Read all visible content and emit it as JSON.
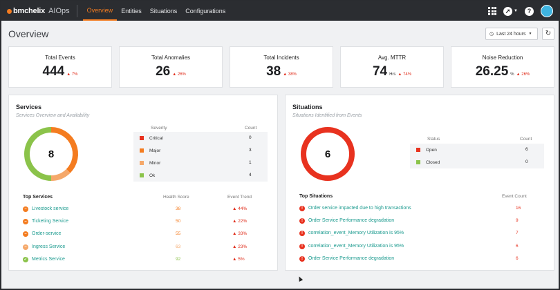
{
  "app": {
    "brand": "bmchelix",
    "product": "AIOps"
  },
  "nav": [
    "Overview",
    "Entities",
    "Situations",
    "Configurations"
  ],
  "page": {
    "title": "Overview",
    "time_range": "Last 24 hours"
  },
  "kpis": [
    {
      "label": "Total Events",
      "value": "444",
      "unit": "",
      "delta": "7%"
    },
    {
      "label": "Total Anomalies",
      "value": "26",
      "unit": "",
      "delta": "26%"
    },
    {
      "label": "Total Incidents",
      "value": "38",
      "unit": "",
      "delta": "38%"
    },
    {
      "label": "Avg. MTTR",
      "value": "74",
      "unit": "Hrs",
      "delta": "74%"
    },
    {
      "label": "Noise Reduction",
      "value": "26.25",
      "unit": "%",
      "delta": "26%"
    }
  ],
  "services": {
    "title": "Services",
    "subtitle": "Services Overview and Availability",
    "total": "8",
    "severity_header": "Severity",
    "count_header": "Count",
    "severities": [
      {
        "name": "Critical",
        "count": 0,
        "color": "#e8321f"
      },
      {
        "name": "Major",
        "count": 3,
        "color": "#f47c20"
      },
      {
        "name": "Minor",
        "count": 1,
        "color": "#f5a86a"
      },
      {
        "name": "Ok",
        "count": 4,
        "color": "#8bc34a"
      }
    ],
    "list_title": "Top Services",
    "health_header": "Health Score",
    "trend_header": "Event Trend",
    "items": [
      {
        "name": "Livestock service",
        "health": "38",
        "trend": "44%",
        "status": "major"
      },
      {
        "name": "Ticketing Service",
        "health": "50",
        "trend": "22%",
        "status": "major"
      },
      {
        "name": "Order-service",
        "health": "55",
        "trend": "33%",
        "status": "major"
      },
      {
        "name": "Ingress Service",
        "health": "63",
        "trend": "23%",
        "status": "minor"
      },
      {
        "name": "Metrics Service",
        "health": "92",
        "trend": "5%",
        "status": "ok"
      }
    ]
  },
  "situations": {
    "title": "Situations",
    "subtitle": "Situations Identified from Events",
    "total": "6",
    "status_header": "Status",
    "count_header": "Count",
    "statuses": [
      {
        "name": "Open",
        "count": 6,
        "color": "#e8321f"
      },
      {
        "name": "Closed",
        "count": 0,
        "color": "#8bc34a"
      }
    ],
    "list_title": "Top Situations",
    "event_header": "Event Count",
    "items": [
      {
        "name": "Order service impacted due to high transactions",
        "count": "16"
      },
      {
        "name": "Order Service Performance degradation",
        "count": "9"
      },
      {
        "name": "correlation_event_Memory Utilization is 95%",
        "count": "7"
      },
      {
        "name": "correlation_event_Memory Utilization is 95%",
        "count": "6"
      },
      {
        "name": "Order Service Performance degradation",
        "count": "6"
      }
    ]
  }
}
